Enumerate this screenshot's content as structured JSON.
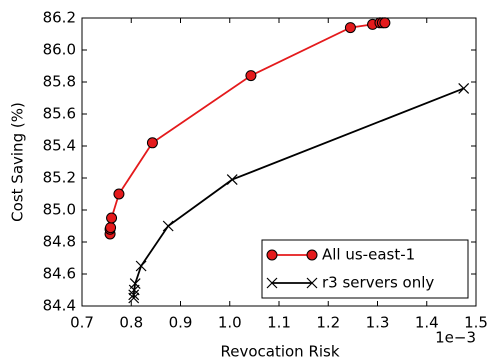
{
  "chart_data": {
    "type": "line",
    "xlabel": "Revocation Risk",
    "ylabel": "Cost Saving (%)",
    "x_offset_label": "1e−3",
    "xlim": [
      0.7,
      1.5
    ],
    "ylim": [
      84.4,
      86.2
    ],
    "xticks": [
      0.7,
      0.8,
      0.9,
      {
        "value": 1,
        "label": "1.0"
      },
      1.1,
      1.2,
      1.3,
      1.4,
      1.5
    ],
    "yticks": [
      84.4,
      84.6,
      84.8,
      {
        "value": 85,
        "label": "85.0"
      },
      85.2,
      85.4,
      85.6,
      85.8,
      {
        "value": 86,
        "label": "86.0"
      },
      86.2
    ],
    "legend": "lower right",
    "series": [
      {
        "name": "All us-east-1",
        "color": "#e41a1c",
        "marker": "o",
        "x": [
          0.757,
          0.757,
          0.758,
          0.76,
          0.775,
          0.843,
          1.043,
          1.245,
          1.29,
          1.305,
          1.31,
          1.315
        ],
        "values": [
          84.85,
          84.88,
          84.89,
          84.95,
          85.1,
          85.42,
          85.84,
          86.14,
          86.16,
          86.17,
          86.17,
          86.17
        ]
      },
      {
        "name": "r3 servers only",
        "color": "#000000",
        "marker": "x",
        "x": [
          0.805,
          0.805,
          0.806,
          0.808,
          0.82,
          0.875,
          1.005,
          1.475
        ],
        "values": [
          84.45,
          84.47,
          84.5,
          84.54,
          84.65,
          84.9,
          85.19,
          85.76
        ]
      }
    ]
  }
}
